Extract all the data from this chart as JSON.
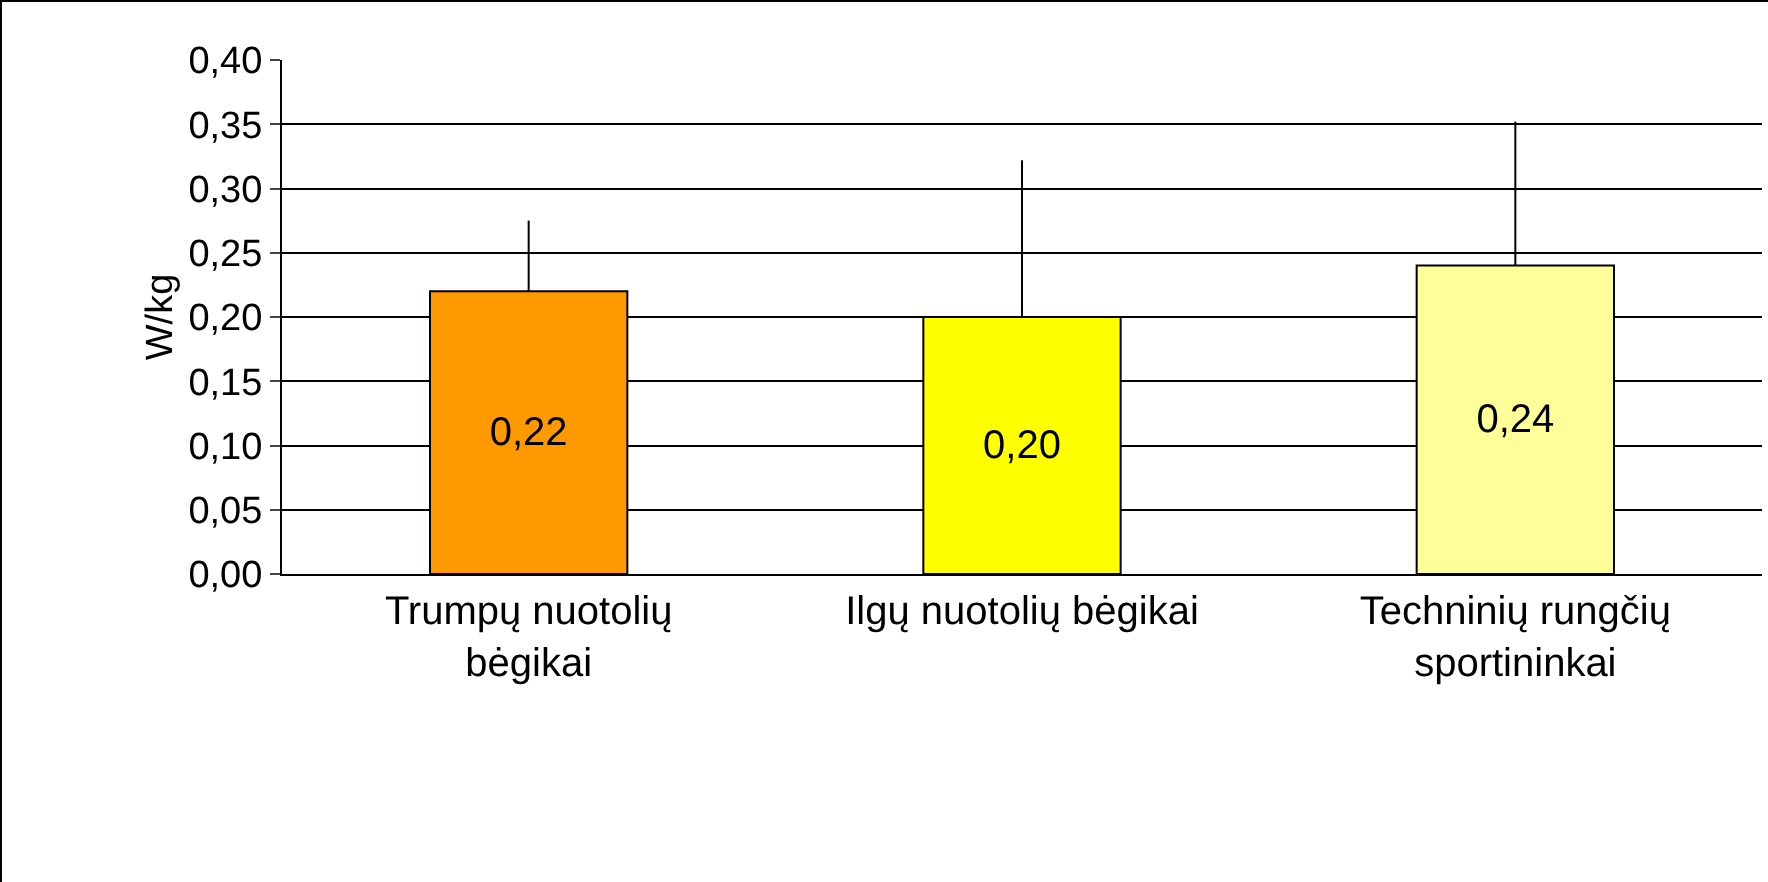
{
  "chart_data": {
    "type": "bar",
    "ylabel": "W/kg",
    "categories": [
      "Trumpų nuotolių bėgikai",
      "Ilgų nuotolių bėgikai",
      "Techninių rungčių sportininkai"
    ],
    "values": [
      0.22,
      0.2,
      0.24
    ],
    "colors": [
      "#ff9900",
      "#ffff00",
      "#ffff99"
    ],
    "errors": [
      [
        0.22,
        0.275
      ],
      [
        0.2,
        0.322
      ],
      [
        0.24,
        0.352
      ]
    ],
    "value_labels": [
      "0,22",
      "0,20",
      "0,24"
    ],
    "ylim": [
      0,
      0.4
    ],
    "yticks": [
      {
        "value": 0,
        "label": "0,00"
      },
      {
        "value": 0.05,
        "label": "0,05"
      },
      {
        "value": 0.1,
        "label": "0,10"
      },
      {
        "value": 0.15,
        "label": "0,15"
      },
      {
        "value": 0.2,
        "label": "0,20"
      },
      {
        "value": 0.25,
        "label": "0,25"
      },
      {
        "value": 0.3,
        "label": "0,30"
      },
      {
        "value": 0.35,
        "label": "0,35"
      },
      {
        "value": 0.4,
        "label": "0,40"
      }
    ],
    "grid": "y",
    "legend": false
  }
}
